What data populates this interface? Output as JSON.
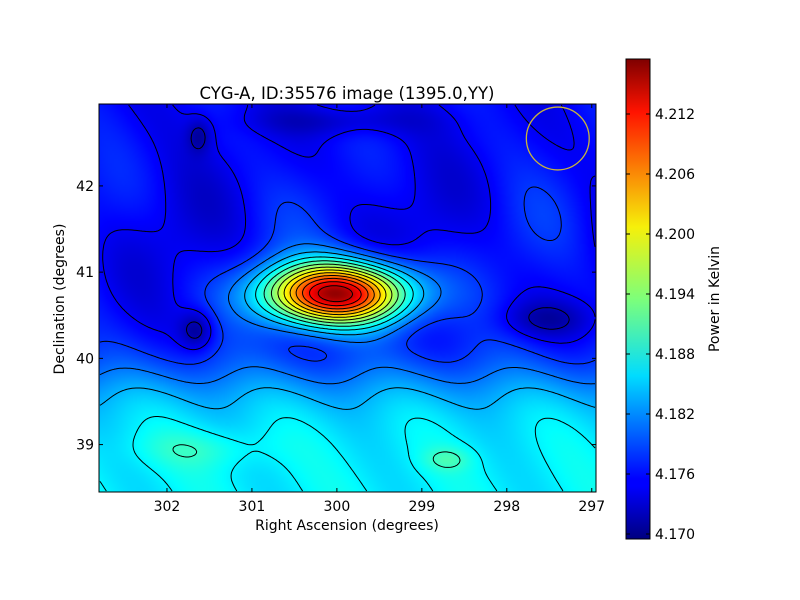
{
  "chart_data": {
    "type": "heatmap",
    "title": "CYG-A, ID:35576 image (1395.0,YY)",
    "xlabel": "Right Ascension (degrees)",
    "ylabel": "Declination (degrees)",
    "colorbar_label": "Power in Kelvin",
    "xlim": [
      302.8,
      296.95
    ],
    "ylim": [
      38.45,
      42.95
    ],
    "x_ticks": [
      302,
      301,
      300,
      299,
      298,
      297
    ],
    "x_tick_labels": [
      "302",
      "301",
      "300",
      "299",
      "298",
      "297"
    ],
    "y_ticks": [
      39,
      40,
      41,
      42
    ],
    "y_tick_labels": [
      "39",
      "40",
      "41",
      "42"
    ],
    "colorbar_range": [
      4.1695,
      4.2175
    ],
    "colorbar_ticks": [
      4.17,
      4.176,
      4.182,
      4.188,
      4.194,
      4.2,
      4.206,
      4.212
    ],
    "colorbar_tick_labels": [
      "4.170",
      "4.176",
      "4.182",
      "4.188",
      "4.194",
      "4.200",
      "4.206",
      "4.212"
    ],
    "colormap": "jet",
    "peak": {
      "ra": 300.0,
      "dec": 40.75,
      "value": 4.217
    },
    "beam_circle": {
      "ra": 297.4,
      "dec": 42.55,
      "radius_deg": 0.37,
      "color": "#c8b43c"
    },
    "contours": "on",
    "grid": "off"
  }
}
